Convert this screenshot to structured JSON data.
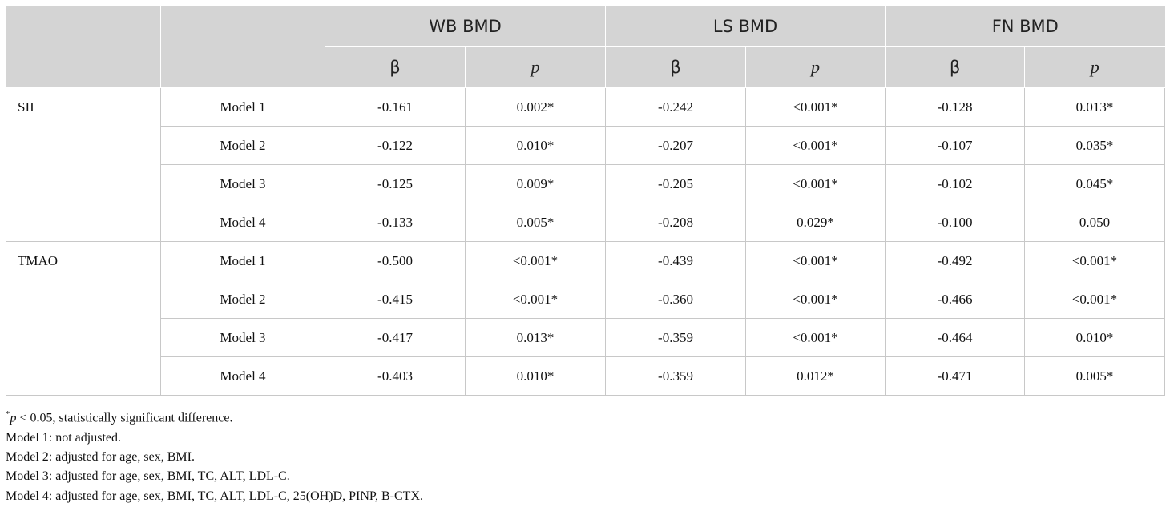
{
  "table": {
    "header": {
      "groups": [
        "WB BMD",
        "LS BMD",
        "FN BMD"
      ],
      "sub": [
        "β",
        "p",
        "β",
        "p",
        "β",
        "p"
      ]
    },
    "groups": [
      {
        "label": "SII",
        "rows": [
          [
            "Model 1",
            "-0.161",
            "0.002*",
            "-0.242",
            "<0.001*",
            "-0.128",
            "0.013*"
          ],
          [
            "Model 2",
            "-0.122",
            "0.010*",
            "-0.207",
            "<0.001*",
            "-0.107",
            "0.035*"
          ],
          [
            "Model 3",
            "-0.125",
            "0.009*",
            "-0.205",
            "<0.001*",
            "-0.102",
            "0.045*"
          ],
          [
            "Model 4",
            "-0.133",
            "0.005*",
            "-0.208",
            "0.029*",
            "-0.100",
            "0.050"
          ]
        ]
      },
      {
        "label": "TMAO",
        "rows": [
          [
            "Model 1",
            "-0.500",
            "<0.001*",
            "-0.439",
            "<0.001*",
            "-0.492",
            "<0.001*"
          ],
          [
            "Model 2",
            "-0.415",
            "<0.001*",
            "-0.360",
            "<0.001*",
            "-0.466",
            "<0.001*"
          ],
          [
            "Model 3",
            "-0.417",
            "0.013*",
            "-0.359",
            "<0.001*",
            "-0.464",
            "0.010*"
          ],
          [
            "Model 4",
            "-0.403",
            "0.010*",
            "-0.359",
            "0.012*",
            "-0.471",
            "0.005*"
          ]
        ]
      }
    ]
  },
  "notes": [
    [
      "*",
      "p",
      " < 0.05, statistically significant difference."
    ],
    [
      "Model 1: not adjusted."
    ],
    [
      "Model 2: adjusted for age, sex, BMI."
    ],
    [
      "Model 3: adjusted for age, sex, BMI, TC, ALT, LDL-C."
    ],
    [
      "Model 4: adjusted for age, sex, BMI, TC, ALT, LDL-C, 25(OH)D, PINP, B-CTX."
    ]
  ]
}
